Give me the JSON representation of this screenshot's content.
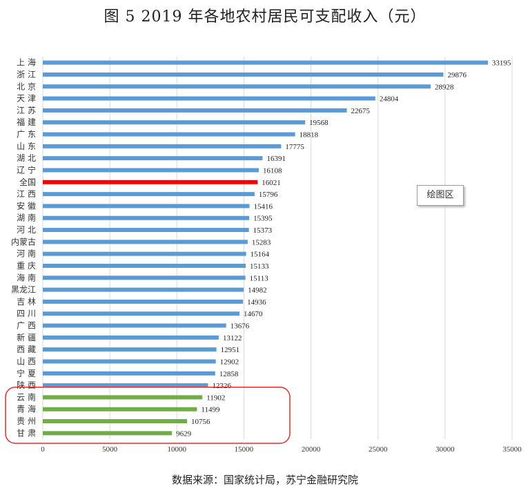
{
  "chart_data": {
    "type": "bar",
    "orientation": "horizontal",
    "title": "图 5 2019 年各地农村居民可支配收入（元）",
    "source": "数据来源：国家统计局，苏宁金融研究院",
    "categories": [
      "上 海",
      "浙 江",
      "北 京",
      "天 津",
      "江 苏",
      "福 建",
      "广 东",
      "山 东",
      "湖 北",
      "辽 宁",
      "全国",
      "江 西",
      "安 徽",
      "湖 南",
      "河 北",
      "内蒙古",
      "河 南",
      "重 庆",
      "海 南",
      "黑龙江",
      "吉 林",
      "四 川",
      "广 西",
      "新 疆",
      "西 藏",
      "山 西",
      "宁 夏",
      "陕 西",
      "云 南",
      "青 海",
      "贵 州",
      "甘 肃"
    ],
    "values": [
      33195,
      29876,
      28928,
      24804,
      22675,
      19568,
      18818,
      17775,
      16391,
      16108,
      16021,
      15796,
      15416,
      15395,
      15373,
      15283,
      15164,
      15133,
      15113,
      14982,
      14936,
      14670,
      13676,
      13122,
      12951,
      12902,
      12858,
      12326,
      11902,
      11499,
      10756,
      9629
    ],
    "xlim": [
      0,
      35000
    ],
    "x_ticks": [
      0,
      5000,
      10000,
      15000,
      20000,
      25000,
      30000,
      35000
    ],
    "grid": "vertical",
    "highlight": {
      "national_index": 10,
      "low_group": [
        28,
        29,
        30,
        31
      ]
    },
    "colors": {
      "default": "#5b9bd5",
      "national": "#ff0000",
      "low_group": "#70ad47",
      "highlight_box": "#e32d2d",
      "grid": "#d9d9d9"
    },
    "tooltip": "绘图区"
  }
}
